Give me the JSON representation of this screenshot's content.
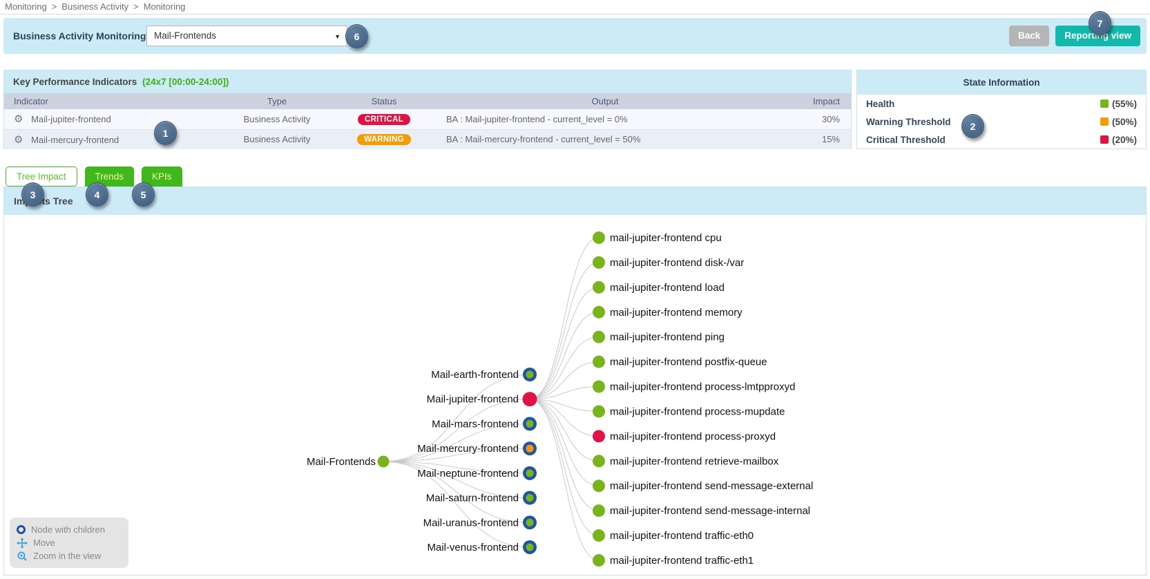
{
  "breadcrumb": {
    "separator": ">",
    "items": [
      "Monitoring",
      "Business Activity",
      "Monitoring"
    ]
  },
  "icons": {
    "select_arrow": "▼",
    "gear": "⚙"
  },
  "header": {
    "title": "Business Activity Monitoring",
    "ba_select": {
      "value": "Mail-Frontends"
    },
    "buttons": {
      "back": "Back",
      "reporting": "Reporting view"
    }
  },
  "kpi_panel": {
    "title": "Key Performance Indicators",
    "period": "(24x7 [00:00-24:00])",
    "columns": {
      "indicator": "Indicator",
      "type": "Type",
      "status": "Status",
      "output": "Output",
      "impact": "Impact"
    },
    "rows": [
      {
        "indicator": "Mail-jupiter-frontend",
        "type": "Business Activity",
        "status": "CRITICAL",
        "output": "BA : Mail-jupiter-frontend - current_level = 0%",
        "impact": "30%"
      },
      {
        "indicator": "Mail-mercury-frontend",
        "type": "Business Activity",
        "status": "WARNING",
        "output": "BA : Mail-mercury-frontend - current_level = 50%",
        "impact": "15%"
      }
    ]
  },
  "state_panel": {
    "title": "State Information",
    "rows": [
      {
        "label": "Health",
        "value": "(55%)",
        "color": "#7ab41c"
      },
      {
        "label": "Warning Threshold",
        "value": "(50%)",
        "color": "#f39c07"
      },
      {
        "label": "Critical Threshold",
        "value": "(20%)",
        "color": "#e01345"
      }
    ]
  },
  "tabs": [
    {
      "label": "Tree Impact",
      "active": true
    },
    {
      "label": "Trends",
      "active": false
    },
    {
      "label": "KPIs",
      "active": false
    }
  ],
  "tree_panel": {
    "title": "Impacts Tree"
  },
  "legend": [
    {
      "icon": "node-with-children-icon",
      "label": "Node with children"
    },
    {
      "icon": "move-icon",
      "label": "Move"
    },
    {
      "icon": "zoom-icon",
      "label": "Zoom in the view"
    }
  ],
  "callouts": [
    "1",
    "2",
    "3",
    "4",
    "5",
    "6",
    "7"
  ],
  "colors": {
    "critical": "#e01345",
    "warning": "#f39c07",
    "ok": "#7ab41c",
    "ring_blue": "#2155a4",
    "accent_teal": "#12b9ab",
    "header_blue": "#cdeaf7",
    "tab_green": "#3fb71d"
  },
  "tree": {
    "status_colors": {
      "ok": "#7ab41c",
      "warning": "#f39c07",
      "critical": "#e01345"
    },
    "ring_color": "#2155a4",
    "link_color": "#c9c9c9",
    "root": {
      "name": "Mail-Frontends",
      "status": "ok"
    },
    "children": [
      {
        "name": "Mail-earth-frontend",
        "status": "ok",
        "ring": true
      },
      {
        "name": "Mail-jupiter-frontend",
        "status": "critical",
        "ring": false,
        "expanded": true
      },
      {
        "name": "Mail-mars-frontend",
        "status": "ok",
        "ring": true
      },
      {
        "name": "Mail-mercury-frontend",
        "status": "warning",
        "ring": true
      },
      {
        "name": "Mail-neptune-frontend",
        "status": "ok",
        "ring": true
      },
      {
        "name": "Mail-saturn-frontend",
        "status": "ok",
        "ring": true
      },
      {
        "name": "Mail-uranus-frontend",
        "status": "ok",
        "ring": true
      },
      {
        "name": "Mail-venus-frontend",
        "status": "ok",
        "ring": true
      }
    ],
    "leaves": [
      {
        "name": "mail-jupiter-frontend cpu",
        "status": "ok"
      },
      {
        "name": "mail-jupiter-frontend disk-/var",
        "status": "ok"
      },
      {
        "name": "mail-jupiter-frontend load",
        "status": "ok"
      },
      {
        "name": "mail-jupiter-frontend memory",
        "status": "ok"
      },
      {
        "name": "mail-jupiter-frontend ping",
        "status": "ok"
      },
      {
        "name": "mail-jupiter-frontend postfix-queue",
        "status": "ok"
      },
      {
        "name": "mail-jupiter-frontend process-lmtpproxyd",
        "status": "ok"
      },
      {
        "name": "mail-jupiter-frontend process-mupdate",
        "status": "ok"
      },
      {
        "name": "mail-jupiter-frontend process-proxyd",
        "status": "critical"
      },
      {
        "name": "mail-jupiter-frontend retrieve-mailbox",
        "status": "ok"
      },
      {
        "name": "mail-jupiter-frontend send-message-external",
        "status": "ok"
      },
      {
        "name": "mail-jupiter-frontend send-message-internal",
        "status": "ok"
      },
      {
        "name": "mail-jupiter-frontend traffic-eth0",
        "status": "ok"
      },
      {
        "name": "mail-jupiter-frontend traffic-eth1",
        "status": "ok"
      }
    ]
  }
}
